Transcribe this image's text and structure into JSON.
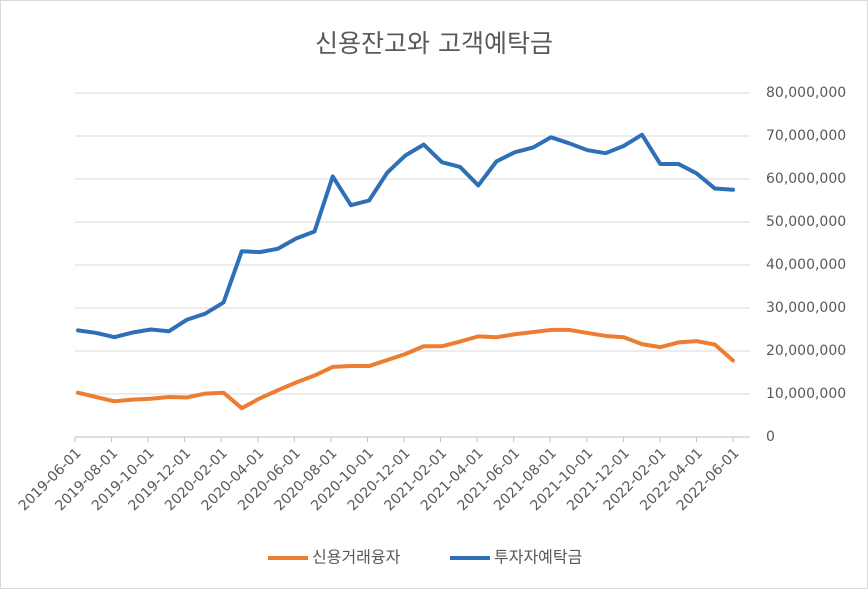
{
  "chart_data": {
    "type": "line",
    "title": "신용잔고와 고객예탁금",
    "x": [
      "2019-06-01",
      "2019-07-01",
      "2019-08-01",
      "2019-09-01",
      "2019-10-01",
      "2019-11-01",
      "2019-12-01",
      "2020-01-01",
      "2020-02-01",
      "2020-03-01",
      "2020-04-01",
      "2020-05-01",
      "2020-06-01",
      "2020-07-01",
      "2020-08-01",
      "2020-09-01",
      "2020-10-01",
      "2020-11-01",
      "2020-12-01",
      "2021-01-01",
      "2021-02-01",
      "2021-03-01",
      "2021-04-01",
      "2021-05-01",
      "2021-06-01",
      "2021-07-01",
      "2021-08-01",
      "2021-09-01",
      "2021-10-01",
      "2021-11-01",
      "2021-12-01",
      "2022-01-01",
      "2022-02-01",
      "2022-03-01",
      "2022-04-01",
      "2022-05-01",
      "2022-06-01"
    ],
    "series": [
      {
        "name": "신용거래융자",
        "color": "#ed7d31",
        "values": [
          10300000,
          9300000,
          8300000,
          8700000,
          8900000,
          9300000,
          9200000,
          10100000,
          10300000,
          6700000,
          9000000,
          10900000,
          12700000,
          14300000,
          16300000,
          16500000,
          16500000,
          17900000,
          19300000,
          21100000,
          21100000,
          22200000,
          23400000,
          23200000,
          23900000,
          24400000,
          24900000,
          24900000,
          24200000,
          23500000,
          23200000,
          21600000,
          20900000,
          22000000,
          22300000,
          21500000,
          17800000
        ]
      },
      {
        "name": "투자자예탁금",
        "color": "#2e6fb7",
        "values": [
          24800000,
          24200000,
          23200000,
          24300000,
          25000000,
          24600000,
          27300000,
          28700000,
          31300000,
          43200000,
          43000000,
          43800000,
          46200000,
          47800000,
          60600000,
          53900000,
          55000000,
          61500000,
          65500000,
          68000000,
          63900000,
          62800000,
          58500000,
          64100000,
          66200000,
          67300000,
          69700000,
          68300000,
          66700000,
          66000000,
          67700000,
          70300000,
          63500000,
          63500000,
          61300000,
          57800000,
          57500000
        ]
      }
    ],
    "ylim": [
      0,
      80000000
    ],
    "yticks": [
      0,
      {
        "value": 10000000,
        "label": "10,000,000"
      },
      {
        "value": 20000000,
        "label": "20,000,000"
      },
      {
        "value": 30000000,
        "label": "30,000,000"
      },
      {
        "value": 40000000,
        "label": "40,000,000"
      },
      {
        "value": 50000000,
        "label": "50,000,000"
      },
      {
        "value": 60000000,
        "label": "60,000,000"
      },
      {
        "value": 70000000,
        "label": "70,000,000"
      },
      {
        "value": 80000000,
        "label": "80,000,000"
      }
    ],
    "grid": true,
    "legend": "bottom"
  }
}
